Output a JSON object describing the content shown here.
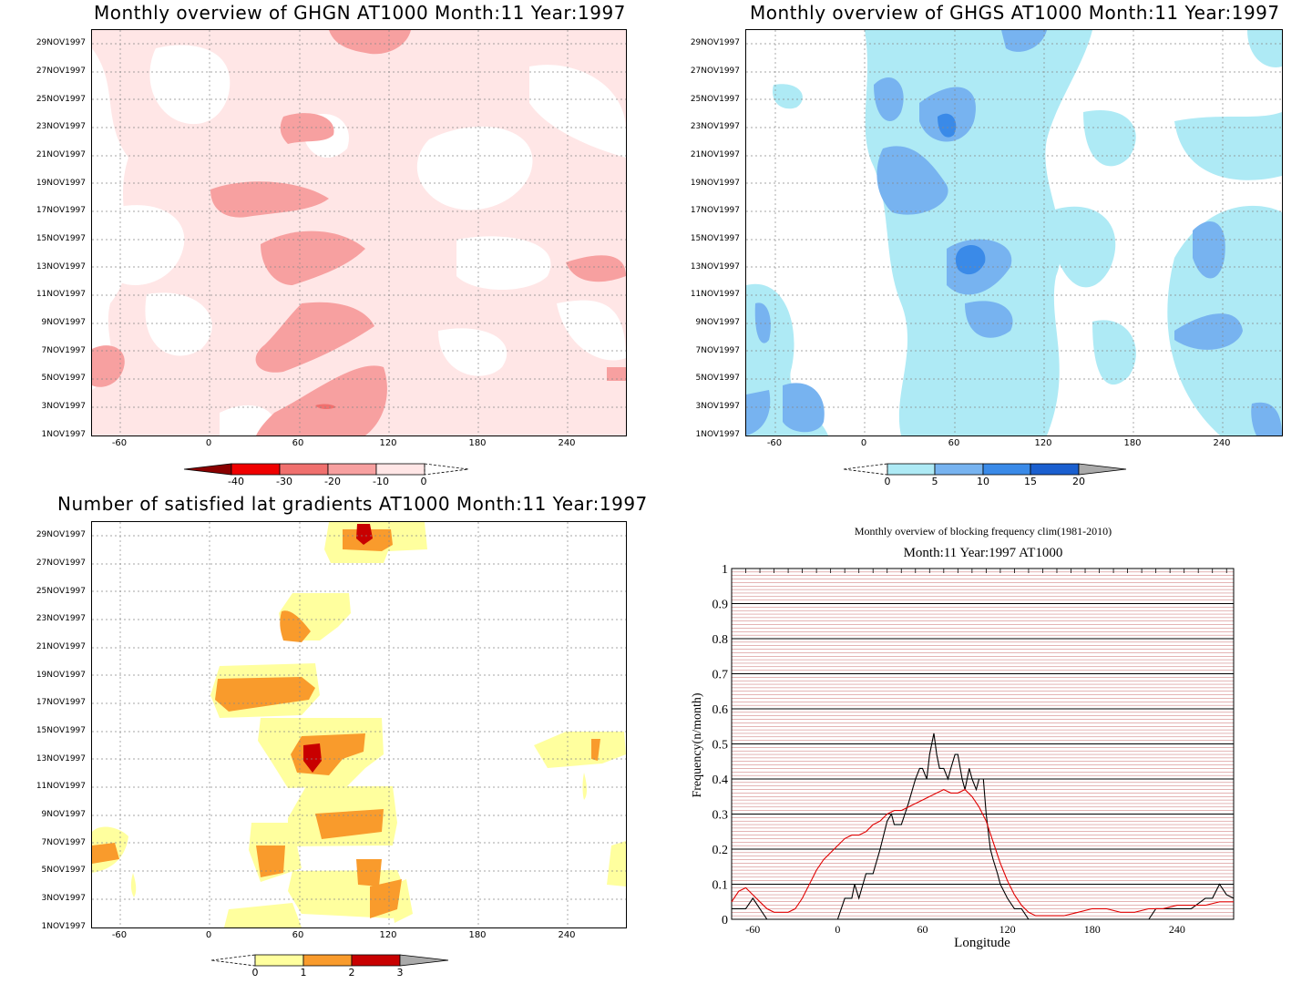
{
  "y_dates": [
    "1NOV1997",
    "3NOV1997",
    "5NOV1997",
    "7NOV1997",
    "9NOV1997",
    "11NOV1997",
    "13NOV1997",
    "15NOV1997",
    "17NOV1997",
    "19NOV1997",
    "21NOV1997",
    "23NOV1997",
    "25NOV1997",
    "27NOV1997",
    "29NOV1997"
  ],
  "x_ticks": [
    "-60",
    "0",
    "60",
    "120",
    "180",
    "240"
  ],
  "panels": {
    "ghgn": {
      "title": "Monthly overview of GHGN AT1000 Month:11 Year:1997",
      "colorbar_labels": [
        "-40",
        "-30",
        "-20",
        "-10",
        "0"
      ],
      "colors": {
        "c0": "#ffe6e6",
        "c1": "#f7a0a0",
        "c2": "#f0706e",
        "c3": "#f00000",
        "c4": "#8a0000"
      }
    },
    "ghgs": {
      "title": "Monthly overview of GHGS AT1000 Month:11 Year:1997",
      "colorbar_labels": [
        "0",
        "5",
        "10",
        "15",
        "20"
      ],
      "colors": {
        "c0": "#aeeaf5",
        "c1": "#77b3f0",
        "c2": "#3a8ae8",
        "c3": "#1a5fcf",
        "c4": "#aaaaaa"
      }
    },
    "lat": {
      "title": "Number of satisfied lat gradients AT1000 Month:11 Year:1997",
      "colorbar_labels": [
        "0",
        "1",
        "2",
        "3"
      ],
      "colors": {
        "c0": "#ffff9e",
        "c1": "#f99b2c",
        "c2": "#c80000",
        "c3": "#aaaaaa"
      }
    },
    "freq": {
      "title": "Monthly overview of blocking frequency clim(1981-2010)",
      "subtitle": "Month:11 Year:1997  AT1000",
      "xlabel": "Longitude",
      "ylabel": "Frequency(n/month)",
      "yticks": [
        "0",
        "0.1",
        "0.2",
        "0.3",
        "0.4",
        "0.5",
        "0.6",
        "0.7",
        "0.8",
        "0.9",
        "1"
      ],
      "xticks": [
        "-60",
        "0",
        "60",
        "120",
        "180",
        "240"
      ]
    }
  },
  "chart_data": [
    {
      "type": "heatmap",
      "title": "Monthly overview of GHGN AT1000 Month:11 Year:1997",
      "x_ticks": [
        -60,
        0,
        60,
        120,
        180,
        240
      ],
      "y_ticks": [
        "1NOV1997",
        "3NOV1997",
        "5NOV1997",
        "7NOV1997",
        "9NOV1997",
        "11NOV1997",
        "13NOV1997",
        "15NOV1997",
        "17NOV1997",
        "19NOV1997",
        "21NOV1997",
        "23NOV1997",
        "25NOV1997",
        "27NOV1997",
        "29NOV1997"
      ],
      "xlim": [
        -75,
        280
      ],
      "levels": [
        -40,
        -30,
        -20,
        -10,
        0
      ]
    },
    {
      "type": "heatmap",
      "title": "Monthly overview of GHGS AT1000 Month:11 Year:1997",
      "x_ticks": [
        -60,
        0,
        60,
        120,
        180,
        240
      ],
      "xlim": [
        -75,
        280
      ],
      "levels": [
        0,
        5,
        10,
        15,
        20
      ]
    },
    {
      "type": "heatmap",
      "title": "Number of satisfied lat gradients AT1000 Month:11 Year:1997",
      "x_ticks": [
        -60,
        0,
        60,
        120,
        180,
        240
      ],
      "xlim": [
        -75,
        280
      ],
      "levels": [
        0,
        1,
        2,
        3
      ]
    },
    {
      "type": "line",
      "title": "Monthly overview of blocking frequency clim(1981-2010)",
      "subtitle": "Month:11 Year:1997  AT1000",
      "xlabel": "Longitude",
      "ylabel": "Frequency(n/month)",
      "xlim": [
        -75,
        280
      ],
      "ylim": [
        0,
        1
      ],
      "series": [
        {
          "color": "#000000",
          "x": [
            -75,
            -65,
            -60,
            -55,
            -50,
            -45,
            -40,
            -35,
            -30,
            -25,
            -20,
            -15,
            -10,
            -5,
            0,
            5,
            10,
            12,
            15,
            20,
            25,
            30,
            35,
            38,
            40,
            45,
            50,
            55,
            58,
            60,
            63,
            65,
            68,
            70,
            72,
            75,
            78,
            80,
            83,
            85,
            88,
            90,
            93,
            95,
            98,
            100,
            103,
            105,
            108,
            110,
            113,
            115,
            120,
            125,
            130,
            135,
            140,
            150,
            160,
            170,
            180,
            190,
            200,
            210,
            220,
            225,
            230,
            240,
            250,
            260,
            265,
            270,
            275,
            280
          ],
          "y": [
            0.03,
            0.03,
            0.06,
            0.03,
            0.0,
            0.0,
            0.0,
            0.0,
            0.0,
            0.0,
            0.0,
            0.0,
            0.0,
            0.0,
            0.0,
            0.06,
            0.06,
            0.1,
            0.06,
            0.13,
            0.13,
            0.2,
            0.28,
            0.3,
            0.27,
            0.27,
            0.33,
            0.4,
            0.43,
            0.43,
            0.4,
            0.47,
            0.53,
            0.47,
            0.43,
            0.43,
            0.4,
            0.43,
            0.47,
            0.47,
            0.4,
            0.37,
            0.43,
            0.4,
            0.37,
            0.4,
            0.4,
            0.3,
            0.2,
            0.17,
            0.13,
            0.1,
            0.06,
            0.03,
            0.03,
            0.0,
            0.0,
            0.0,
            0.0,
            0.0,
            0.0,
            0.0,
            0.0,
            0.0,
            0.0,
            0.03,
            0.03,
            0.03,
            0.03,
            0.06,
            0.06,
            0.1,
            0.07,
            0.06
          ]
        },
        {
          "color": "#e00000",
          "x": [
            -75,
            -70,
            -65,
            -60,
            -55,
            -50,
            -45,
            -40,
            -35,
            -30,
            -25,
            -20,
            -15,
            -10,
            -5,
            0,
            5,
            10,
            15,
            20,
            25,
            30,
            35,
            40,
            45,
            50,
            55,
            60,
            65,
            70,
            75,
            80,
            85,
            90,
            95,
            100,
            105,
            110,
            115,
            120,
            125,
            130,
            135,
            140,
            150,
            160,
            170,
            180,
            190,
            200,
            210,
            220,
            230,
            240,
            250,
            260,
            270,
            280
          ],
          "y": [
            0.05,
            0.08,
            0.09,
            0.07,
            0.05,
            0.03,
            0.02,
            0.02,
            0.02,
            0.03,
            0.06,
            0.1,
            0.14,
            0.17,
            0.19,
            0.21,
            0.23,
            0.24,
            0.24,
            0.25,
            0.27,
            0.28,
            0.3,
            0.31,
            0.31,
            0.32,
            0.33,
            0.34,
            0.35,
            0.36,
            0.37,
            0.36,
            0.36,
            0.37,
            0.35,
            0.32,
            0.28,
            0.22,
            0.16,
            0.11,
            0.07,
            0.04,
            0.02,
            0.01,
            0.01,
            0.01,
            0.02,
            0.03,
            0.03,
            0.02,
            0.02,
            0.03,
            0.03,
            0.04,
            0.04,
            0.04,
            0.05,
            0.05
          ]
        }
      ]
    }
  ]
}
